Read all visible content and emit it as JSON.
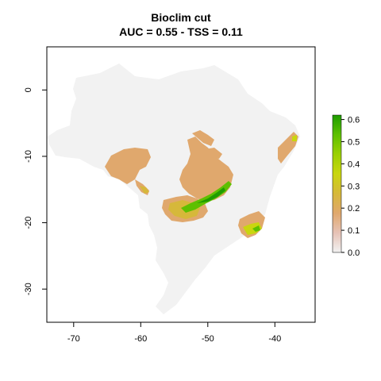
{
  "title": "Bioclim cut",
  "subtitle": "AUC = 0.55 - TSS = 0.11",
  "map": {
    "x_range": [
      -74,
      -34
    ],
    "y_range": [
      -35,
      6.5
    ],
    "x_ticks": [
      -70,
      -60,
      -50,
      -40
    ],
    "y_ticks": [
      0,
      -10,
      -20,
      -30
    ],
    "x_tick_labels": [
      "-70",
      "-60",
      "-50",
      "-40"
    ],
    "y_tick_labels": [
      "0",
      "-10",
      "-20",
      "-30"
    ],
    "background_color": "#f2f2f2"
  },
  "legend": {
    "range": [
      0,
      0.62
    ],
    "ticks": [
      0.0,
      0.1,
      0.2,
      0.3,
      0.4,
      0.5,
      0.6
    ],
    "tick_labels": [
      "0.0",
      "0.1",
      "0.2",
      "0.3",
      "0.4",
      "0.5",
      "0.6"
    ],
    "colors": [
      "#f2f2f2",
      "#e6c2b6",
      "#e0a86d",
      "#d6b83a",
      "#c9d60f",
      "#9bd002",
      "#5ec000",
      "#1e9c00"
    ]
  }
}
